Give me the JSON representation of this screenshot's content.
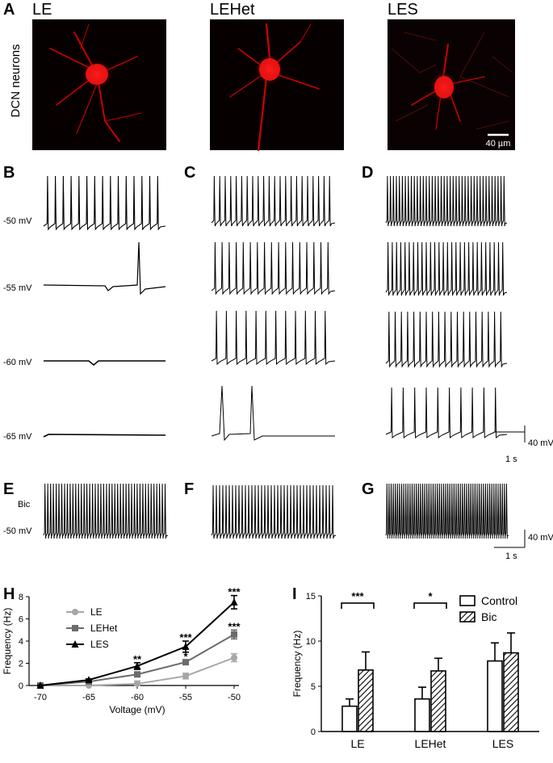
{
  "panel_letters": [
    "A",
    "B",
    "C",
    "D",
    "E",
    "F",
    "G",
    "H",
    "I"
  ],
  "imaging": {
    "row_label": "DCN neurons",
    "groups": [
      "LE",
      "LEHet",
      "LES"
    ],
    "scalebar": "40 µm"
  },
  "traces": {
    "voltages": [
      "-50 mV",
      "-55 mV",
      "-60 mV",
      "-65 mV"
    ],
    "bic_label": "Bic",
    "bic_voltage": "-50 mV",
    "scale_y": "40 mV",
    "scale_x": "1 s"
  },
  "chart_data": [
    {
      "type": "line",
      "panel": "H",
      "xlabel": "Voltage (mV)",
      "ylabel": "Frequency (Hz)",
      "x": [
        -70,
        -65,
        -60,
        -55,
        -50
      ],
      "x_ticks": [
        "-70",
        "-65",
        "-60",
        "-55",
        "-50"
      ],
      "y_ticks": [
        "0",
        "2",
        "4",
        "6",
        "8"
      ],
      "ylim": [
        0,
        8
      ],
      "legend_position": "top-left",
      "series": [
        {
          "name": "LE",
          "marker": "circle",
          "color": "#a6a6a6",
          "values": [
            0,
            0,
            0.15,
            0.85,
            2.5
          ],
          "errors": [
            0.05,
            0.1,
            0.25,
            0.25,
            0.35
          ]
        },
        {
          "name": "LEHet",
          "marker": "square",
          "color": "#6b6b6b",
          "values": [
            0,
            0.35,
            1.0,
            2.1,
            4.6
          ],
          "errors": [
            0.05,
            0.1,
            0.1,
            0.2,
            0.4
          ]
        },
        {
          "name": "LES",
          "marker": "triangle",
          "color": "#000000",
          "values": [
            0,
            0.5,
            1.75,
            3.5,
            7.5
          ],
          "errors": [
            0.05,
            0.1,
            0.3,
            0.5,
            0.6
          ]
        }
      ],
      "annotations": [
        {
          "x": -60,
          "text": "**",
          "y": 2.05
        },
        {
          "x": -55,
          "text": "***",
          "y": 4.0
        },
        {
          "x": -55,
          "text": "*",
          "y": 2.3
        },
        {
          "x": -50,
          "text": "***",
          "y": 8.1
        },
        {
          "x": -50,
          "text": "***",
          "y": 5.0
        }
      ]
    },
    {
      "type": "bar",
      "panel": "I",
      "ylabel": "Frequency (Hz)",
      "categories": [
        "LE",
        "LEHet",
        "LES"
      ],
      "y_ticks": [
        "0",
        "5",
        "10",
        "15"
      ],
      "ylim": [
        0,
        15
      ],
      "legend_position": "top-right",
      "series": [
        {
          "name": "Control",
          "fill": "open",
          "values": [
            2.8,
            3.6,
            7.8
          ],
          "errors": [
            0.8,
            1.3,
            2.0
          ]
        },
        {
          "name": "Bic",
          "fill": "hatched",
          "values": [
            6.8,
            6.7,
            8.7
          ],
          "errors": [
            2.0,
            1.4,
            2.2
          ]
        }
      ],
      "significance": [
        {
          "category": "LE",
          "text": "***"
        },
        {
          "category": "LEHet",
          "text": "*"
        }
      ]
    }
  ]
}
